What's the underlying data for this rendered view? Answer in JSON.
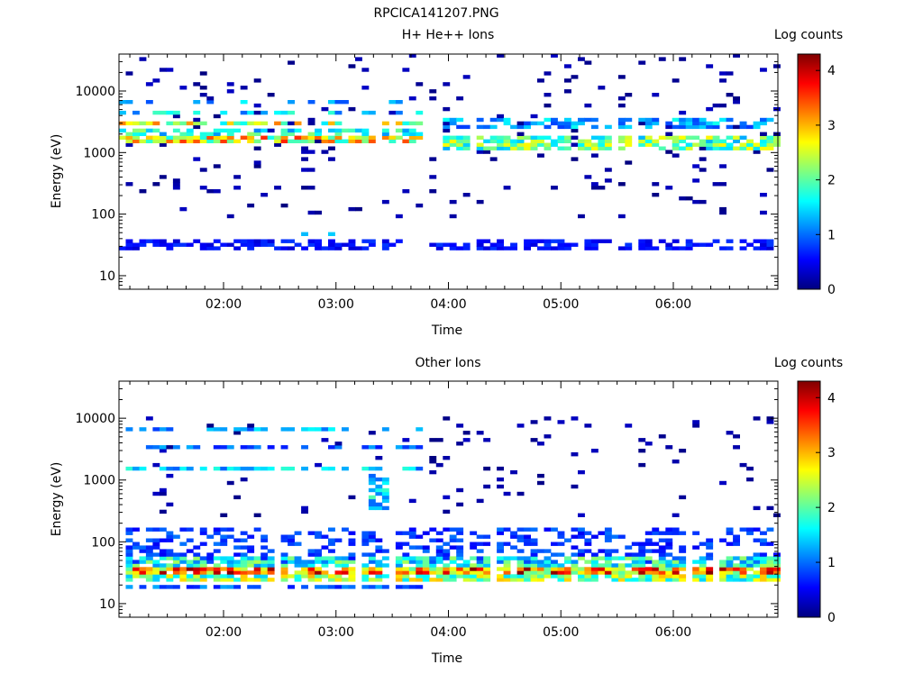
{
  "page": {
    "title": "RPCICA141207.PNG"
  },
  "colorbar_stops": [
    "#00007f",
    "#0000ff",
    "#007fff",
    "#00ffff",
    "#7fff7f",
    "#ffff00",
    "#ff7f00",
    "#ff0000",
    "#7f0000"
  ],
  "chart_data": [
    {
      "type": "heatmap",
      "title": "H+ He++ Ions",
      "xlabel": "Time",
      "ylabel": "Energy (eV)",
      "colorbar_label": "Log counts",
      "colorbar_ticks": [
        "0",
        "1",
        "2",
        "3",
        "4"
      ],
      "colorbar_range": [
        0,
        4.3
      ],
      "x_ticks": [
        "02:00",
        "03:00",
        "04:00",
        "05:00",
        "06:00"
      ],
      "y_ticks": [
        "10",
        "100",
        "1000",
        "10000"
      ],
      "x_range_hours": [
        1.07,
        6.93
      ],
      "y_range_log10": [
        0.78,
        4.6
      ],
      "y_scale": "log",
      "x_ticks_hours": [
        2,
        3,
        4,
        5,
        6
      ],
      "bands": [
        {
          "log_e": 3.18,
          "h": 0.1,
          "level": 2.8,
          "density": 0.85,
          "x_from": 1.07,
          "x_to": 3.75
        },
        {
          "log_e": 3.3,
          "h": 0.08,
          "level": 1.8,
          "density": 0.6,
          "x_from": 1.07,
          "x_to": 3.75
        },
        {
          "log_e": 3.45,
          "h": 0.07,
          "level": 2.5,
          "density": 0.7,
          "x_from": 1.07,
          "x_to": 3.75
        },
        {
          "log_e": 3.6,
          "h": 0.06,
          "level": 1.5,
          "density": 0.45,
          "x_from": 1.07,
          "x_to": 3.75
        },
        {
          "log_e": 3.78,
          "h": 0.05,
          "level": 1.3,
          "density": 0.35,
          "x_from": 1.07,
          "x_to": 3.75
        },
        {
          "log_e": 3.12,
          "h": 0.25,
          "level": 2.1,
          "density": 0.75,
          "x_from": 3.9,
          "x_to": 6.93
        },
        {
          "log_e": 3.45,
          "h": 0.2,
          "level": 1.3,
          "density": 0.6,
          "x_from": 3.9,
          "x_to": 6.93
        },
        {
          "log_e": 1.5,
          "h": 0.18,
          "level": 0.6,
          "density": 0.55,
          "x_from": 1.07,
          "x_to": 6.93
        },
        {
          "log_e": 1.65,
          "h": 0.1,
          "level": 1.2,
          "density": 0.3,
          "x_from": 2.5,
          "x_to": 3.75
        }
      ],
      "noise": {
        "density": 0.045,
        "level": 0.3,
        "log_from": 1.9,
        "log_to": 4.6
      }
    },
    {
      "type": "heatmap",
      "title": "Other Ions",
      "xlabel": "Time",
      "ylabel": "Energy (eV)",
      "colorbar_label": "Log counts",
      "colorbar_ticks": [
        "0",
        "1",
        "2",
        "3",
        "4"
      ],
      "colorbar_range": [
        0,
        4.3
      ],
      "x_ticks": [
        "02:00",
        "03:00",
        "04:00",
        "05:00",
        "06:00"
      ],
      "y_ticks": [
        "10",
        "100",
        "1000",
        "10000"
      ],
      "x_range_hours": [
        1.07,
        6.93
      ],
      "y_range_log10": [
        0.78,
        4.6
      ],
      "y_scale": "log",
      "x_ticks_hours": [
        2,
        3,
        4,
        5,
        6
      ],
      "bands": [
        {
          "log_e": 1.5,
          "h": 0.1,
          "level": 3.3,
          "density": 0.9,
          "x_from": 1.07,
          "x_to": 6.93
        },
        {
          "log_e": 1.38,
          "h": 0.09,
          "level": 2.3,
          "density": 0.85,
          "x_from": 1.07,
          "x_to": 6.93
        },
        {
          "log_e": 1.65,
          "h": 0.12,
          "level": 1.8,
          "density": 0.7,
          "x_from": 1.07,
          "x_to": 6.93
        },
        {
          "log_e": 1.25,
          "h": 0.07,
          "level": 1.0,
          "density": 0.7,
          "x_from": 1.07,
          "x_to": 3.75
        },
        {
          "log_e": 1.9,
          "h": 0.6,
          "level": 0.8,
          "density": 0.35,
          "x_from": 1.07,
          "x_to": 6.93
        },
        {
          "log_e": 3.18,
          "h": 0.06,
          "level": 1.4,
          "density": 0.55,
          "x_from": 1.07,
          "x_to": 3.75
        },
        {
          "log_e": 3.5,
          "h": 0.06,
          "level": 1.0,
          "density": 0.5,
          "x_from": 1.07,
          "x_to": 3.75
        },
        {
          "log_e": 3.8,
          "h": 0.05,
          "level": 1.3,
          "density": 0.45,
          "x_from": 1.07,
          "x_to": 3.75
        },
        {
          "log_e": 2.8,
          "h": 0.6,
          "level": 1.5,
          "density": 0.5,
          "x_from": 3.25,
          "x_to": 3.45
        }
      ],
      "noise": {
        "density": 0.035,
        "level": 0.3,
        "log_from": 2.4,
        "log_to": 4.0
      }
    }
  ]
}
